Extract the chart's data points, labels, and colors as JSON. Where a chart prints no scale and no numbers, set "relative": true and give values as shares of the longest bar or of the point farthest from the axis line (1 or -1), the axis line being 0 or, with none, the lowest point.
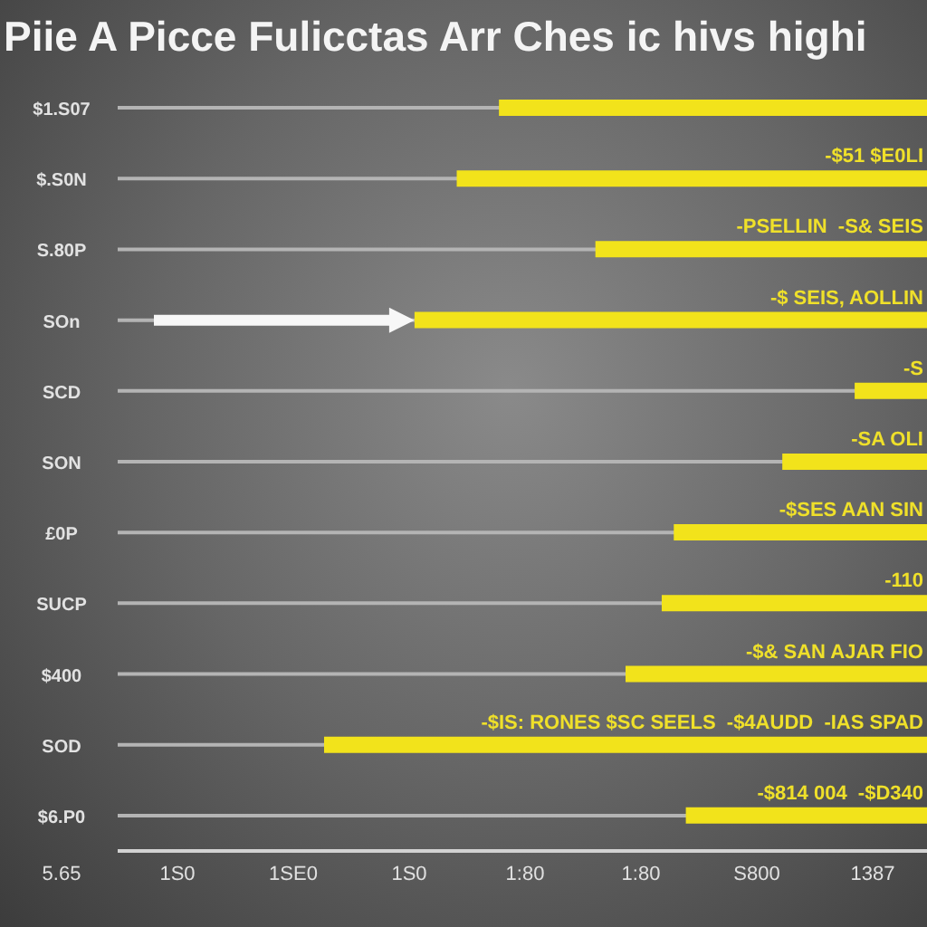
{
  "chart_data": {
    "type": "bar",
    "orientation": "horizontal",
    "relative": true,
    "title": "Piie A Picce Fulicctas Arr Ches ic hivs highi",
    "categories": [
      "$1.S07",
      "$.S0N",
      "S.80P",
      "SOn",
      "SCD",
      "SON",
      "£0P",
      "SUCP",
      "$400",
      "SOD",
      "$6.P0"
    ],
    "values": [
      0.71,
      0.78,
      0.55,
      0.85,
      0.12,
      0.24,
      0.42,
      0.44,
      0.5,
      1,
      0.4
    ],
    "color": "#f2e31b",
    "annotations": [
      "5.65",
      "1S0",
      "1SE0",
      "1S0",
      "1:80",
      "1:80",
      "S800",
      "1387",
      {
        "text": "-$51 $E0LI",
        "y": "$.S0N"
      },
      {
        "text": "-PSELLIN  -S& SEIS",
        "y": "S.80P"
      },
      {
        "text": "-$ SEIS, AOLLIN",
        "y": "SOn"
      },
      {
        "text": "-S",
        "y": "SCD"
      },
      {
        "text": "-SA OLI",
        "y": "SON"
      },
      {
        "text": "-$SES AAN SIN",
        "y": "£0P"
      },
      {
        "text": "-110",
        "y": "SUCP"
      },
      {
        "text": "-$& SAN AJAR FIO",
        "y": "$400"
      },
      {
        "text": "-$IS: RONES $SC SEELS  -$4AUDD  -IAS SPAD",
        "y": "SOD"
      },
      {
        "text": "-$814 004  -$D340",
        "y": "$6.P0"
      }
    ],
    "grid": "y"
  }
}
